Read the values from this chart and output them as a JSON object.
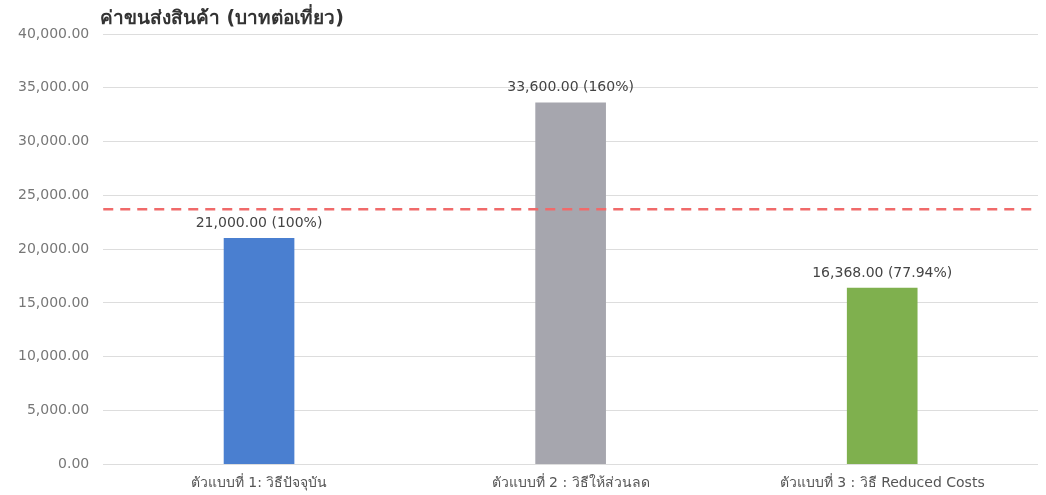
{
  "chart_data": {
    "type": "bar",
    "title": "ค่าขนส่งสินค้า (บาทต่อเที่ยว)",
    "categories": [
      "ตัวแบบที่ 1: วิธีปัจจุบัน",
      "ตัวแบบที่ 2 : วิธีให้ส่วนลด",
      "ตัวแบบที่ 3 : วิธี Reduced Costs"
    ],
    "values": [
      21000,
      33600,
      16368
    ],
    "colors": [
      "#4a7fd0",
      "#a6a6ae",
      "#7fb04e"
    ],
    "value_labels": [
      "21,000.00 (100%)",
      "33,600.00 (160%)",
      "16,368.00 (77.94%)"
    ],
    "ylim": [
      0,
      40000
    ],
    "yticks": [
      {
        "value": 0,
        "label": "0.00"
      },
      {
        "value": 5000,
        "label": "5,000.00"
      },
      {
        "value": 10000,
        "label": "10,000.00"
      },
      {
        "value": 15000,
        "label": "15,000.00"
      },
      {
        "value": 20000,
        "label": "20,000.00"
      },
      {
        "value": 25000,
        "label": "25,000.00"
      },
      {
        "value": 30000,
        "label": "30,000.00"
      },
      {
        "value": 35000,
        "label": "35,000.00"
      },
      {
        "value": 40000,
        "label": "40,000.00"
      }
    ],
    "ref_lines": [
      {
        "axis": "y",
        "value": 23700,
        "color": "#f06a6a",
        "line_style": "dashed"
      }
    ],
    "grid": "y",
    "legend": false
  }
}
